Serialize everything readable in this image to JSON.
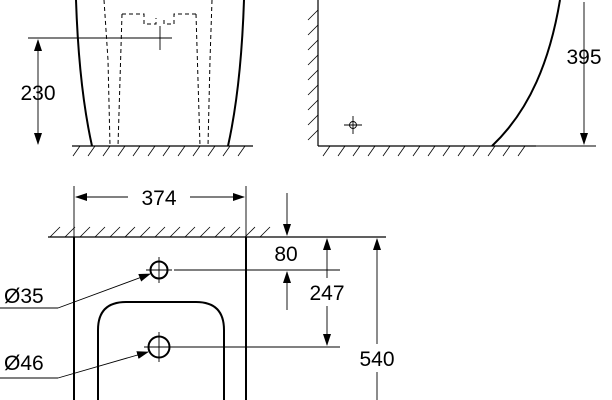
{
  "dimensions": {
    "height_front": "230",
    "height_side": "395",
    "width_top": "374",
    "hole_offset": "80",
    "hole_spacing": "247",
    "depth_total": "540",
    "small_hole_diameter": "Ø35",
    "large_hole_diameter": "Ø46"
  }
}
